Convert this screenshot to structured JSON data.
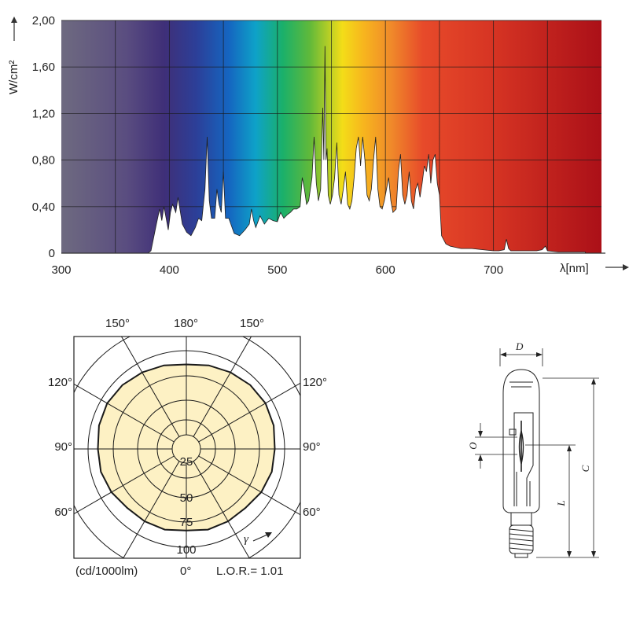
{
  "chart_data": [
    {
      "type": "area",
      "ylabel": "W/cm²",
      "xlabel": "λ[nm]",
      "xlim": [
        300,
        800
      ],
      "ylim": [
        0,
        2.0
      ],
      "x_ticks": [
        "300",
        "400",
        "500",
        "600",
        "700"
      ],
      "y_ticks": [
        "0",
        "0,40",
        "0,80",
        "1,20",
        "1,60",
        "2,00"
      ],
      "grid": true,
      "x": [
        380,
        383,
        388,
        391,
        393,
        395,
        397,
        399,
        401,
        403,
        406,
        408,
        412,
        416,
        420,
        424,
        427,
        430,
        433,
        435,
        437,
        439,
        442,
        444,
        446,
        448,
        450,
        452,
        455,
        460,
        465,
        470,
        474,
        476,
        478,
        480,
        484,
        488,
        492,
        496,
        500,
        503,
        506,
        509,
        512,
        515,
        518,
        521,
        523,
        525,
        527,
        529,
        532,
        534,
        536,
        538,
        540,
        542,
        543,
        544,
        545,
        546,
        547,
        549,
        551,
        553,
        555,
        557,
        559,
        561,
        563,
        565,
        567,
        569,
        571,
        573,
        575,
        577,
        579,
        581,
        583,
        585,
        587,
        589,
        591,
        593,
        595,
        597,
        599,
        601,
        603,
        605,
        607,
        610,
        612,
        614,
        616,
        618,
        620,
        622,
        624,
        626,
        628,
        630,
        632,
        634,
        636,
        638,
        640,
        642,
        644,
        646,
        648,
        650,
        652,
        656,
        660,
        665,
        670,
        680,
        690,
        700,
        705,
        710,
        712,
        714,
        716,
        720,
        730,
        740,
        745,
        748,
        750,
        760,
        770,
        780,
        785
      ],
      "y": [
        0,
        0.02,
        0.25,
        0.38,
        0.28,
        0.4,
        0.3,
        0.2,
        0.35,
        0.42,
        0.35,
        0.48,
        0.25,
        0.18,
        0.15,
        0.22,
        0.3,
        0.28,
        0.55,
        1.0,
        0.45,
        0.3,
        0.3,
        0.55,
        0.42,
        0.35,
        0.7,
        0.3,
        0.3,
        0.17,
        0.15,
        0.2,
        0.25,
        0.38,
        0.28,
        0.22,
        0.32,
        0.25,
        0.3,
        0.28,
        0.27,
        0.35,
        0.3,
        0.33,
        0.35,
        0.38,
        0.38,
        0.4,
        0.65,
        0.55,
        0.42,
        0.45,
        0.65,
        1.0,
        0.6,
        0.45,
        0.55,
        1.25,
        0.8,
        1.78,
        0.8,
        0.9,
        0.5,
        0.42,
        0.5,
        0.65,
        0.95,
        0.5,
        0.42,
        0.55,
        0.7,
        0.42,
        0.38,
        0.45,
        0.65,
        0.9,
        1.0,
        0.75,
        1.0,
        0.8,
        0.5,
        0.45,
        0.55,
        0.8,
        1.0,
        0.55,
        0.4,
        0.38,
        0.45,
        0.55,
        0.65,
        0.45,
        0.35,
        0.38,
        0.7,
        0.85,
        0.5,
        0.42,
        0.5,
        0.7,
        0.45,
        0.38,
        0.55,
        0.6,
        0.48,
        0.6,
        0.75,
        0.7,
        0.85,
        0.6,
        0.8,
        0.85,
        0.6,
        0.5,
        0.15,
        0.08,
        0.06,
        0.05,
        0.04,
        0.04,
        0.03,
        0.02,
        0.02,
        0.03,
        0.12,
        0.04,
        0.02,
        0.02,
        0.02,
        0.02,
        0.03,
        0.06,
        0.02,
        0.01,
        0.01,
        0.01,
        0.01
      ]
    },
    {
      "type": "polar",
      "angle_labels": {
        "top": [
          "150°",
          "180°",
          "150°"
        ],
        "left": [
          "120°",
          "90°",
          "60°"
        ],
        "right": [
          "120°",
          "90°",
          "60°"
        ],
        "bottom": "0°"
      },
      "radial_labels": [
        "25",
        "50",
        "75",
        "100"
      ],
      "radial_values": [
        25,
        50,
        75,
        100
      ],
      "unit_label": "(cd/1000lm)",
      "lor_label": "L.O.R.= 1.01",
      "gamma_label": "γ",
      "intensity_curve": {
        "angles_deg": [
          0,
          15,
          30,
          45,
          60,
          75,
          90,
          105,
          120,
          135,
          150,
          165,
          180,
          195,
          210,
          225,
          240,
          255,
          270,
          285,
          300,
          315,
          330,
          345
        ],
        "values": [
          83,
          85,
          85,
          85,
          88,
          90,
          90,
          92,
          93,
          92,
          90,
          88,
          86,
          88,
          90,
          92,
          93,
          92,
          90,
          90,
          88,
          85,
          85,
          85
        ]
      }
    }
  ],
  "lamp": {
    "dimension_labels": [
      "D",
      "O",
      "L",
      "C"
    ]
  },
  "colors": {
    "spectrum_white_fill": "#ffffff",
    "curve_fill": "#fdf1c4",
    "ink": "#222222"
  }
}
